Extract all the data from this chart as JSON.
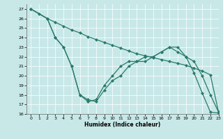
{
  "xlabel": "Humidex (Indice chaleur)",
  "xlim": [
    -0.5,
    23
  ],
  "ylim": [
    16,
    27.5
  ],
  "yticks": [
    16,
    17,
    18,
    19,
    20,
    21,
    22,
    23,
    24,
    25,
    26,
    27
  ],
  "xticks": [
    0,
    1,
    2,
    3,
    4,
    5,
    6,
    7,
    8,
    9,
    10,
    11,
    12,
    13,
    14,
    15,
    16,
    17,
    18,
    19,
    20,
    21,
    22,
    23
  ],
  "line_color": "#2a7a6a",
  "bg_color": "#c8e8e8",
  "grid_color": "#ffffff",
  "line1_x": [
    0,
    1,
    2,
    3,
    4,
    5,
    6,
    7,
    8,
    9,
    10,
    11,
    12,
    13,
    14,
    15,
    16,
    17,
    18,
    19,
    20,
    21,
    22,
    23
  ],
  "line1_y": [
    27,
    26.5,
    26.0,
    25.6,
    25.2,
    24.8,
    24.5,
    24.1,
    23.8,
    23.5,
    23.2,
    22.9,
    22.6,
    22.3,
    22.1,
    21.9,
    21.7,
    21.5,
    21.3,
    21.1,
    20.8,
    20.5,
    20.1,
    16.2
  ],
  "line2_x": [
    0,
    2,
    3,
    4,
    5,
    6,
    7,
    8,
    9,
    10,
    11,
    12,
    13,
    14,
    15,
    16,
    17,
    18,
    19,
    20,
    21,
    22,
    23
  ],
  "line2_y": [
    27,
    26.0,
    24.0,
    23.0,
    21.0,
    18.0,
    17.5,
    17.3,
    18.5,
    19.5,
    20.0,
    21.0,
    21.5,
    21.5,
    22.0,
    22.5,
    23.0,
    23.0,
    22.0,
    21.5,
    20.0,
    18.0,
    16.2
  ],
  "line3_x": [
    0,
    2,
    3,
    4,
    5,
    6,
    7,
    8,
    9,
    10,
    11,
    12,
    13,
    14,
    15,
    16,
    17,
    18,
    19,
    20,
    21,
    22,
    23
  ],
  "line3_y": [
    27,
    26.0,
    24.0,
    23.0,
    21.0,
    18.0,
    17.3,
    17.5,
    19.0,
    20.0,
    21.0,
    21.5,
    21.5,
    22.0,
    22.0,
    22.5,
    23.0,
    22.5,
    22.0,
    20.3,
    18.2,
    16.2,
    16.1
  ],
  "markersize": 2.5
}
